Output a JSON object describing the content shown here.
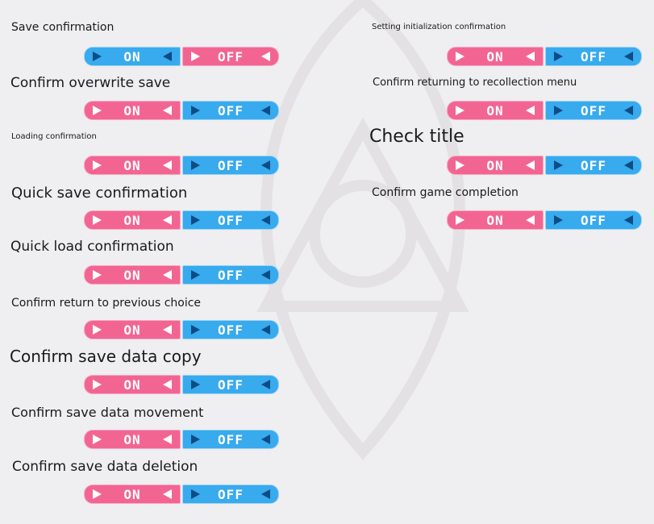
{
  "colors": {
    "selected": "#f26592",
    "unselected": "#38aaee",
    "background": "#efeef0"
  },
  "on_label": "ON",
  "off_label": "OFF",
  "left": [
    {
      "label": "Save confirmation",
      "value": "OFF"
    },
    {
      "label": "Confirm overwrite save",
      "value": "ON"
    },
    {
      "label": "Loading confirmation",
      "value": "ON"
    },
    {
      "label": "Quick save confirmation",
      "value": "ON"
    },
    {
      "label": "Quick load confirmation",
      "value": "ON"
    },
    {
      "label": "Confirm return to previous choice",
      "value": "ON"
    },
    {
      "label": "Confirm save data copy",
      "value": "ON"
    },
    {
      "label": "Confirm save data movement",
      "value": "ON"
    },
    {
      "label": "Confirm save data deletion",
      "value": "ON"
    }
  ],
  "right": [
    {
      "label": "Setting initialization confirmation",
      "value": "ON"
    },
    {
      "label": "Confirm returning to recollection menu",
      "value": "ON"
    },
    {
      "label": "Check title",
      "value": "ON"
    },
    {
      "label": "Confirm game completion",
      "value": "ON"
    }
  ]
}
